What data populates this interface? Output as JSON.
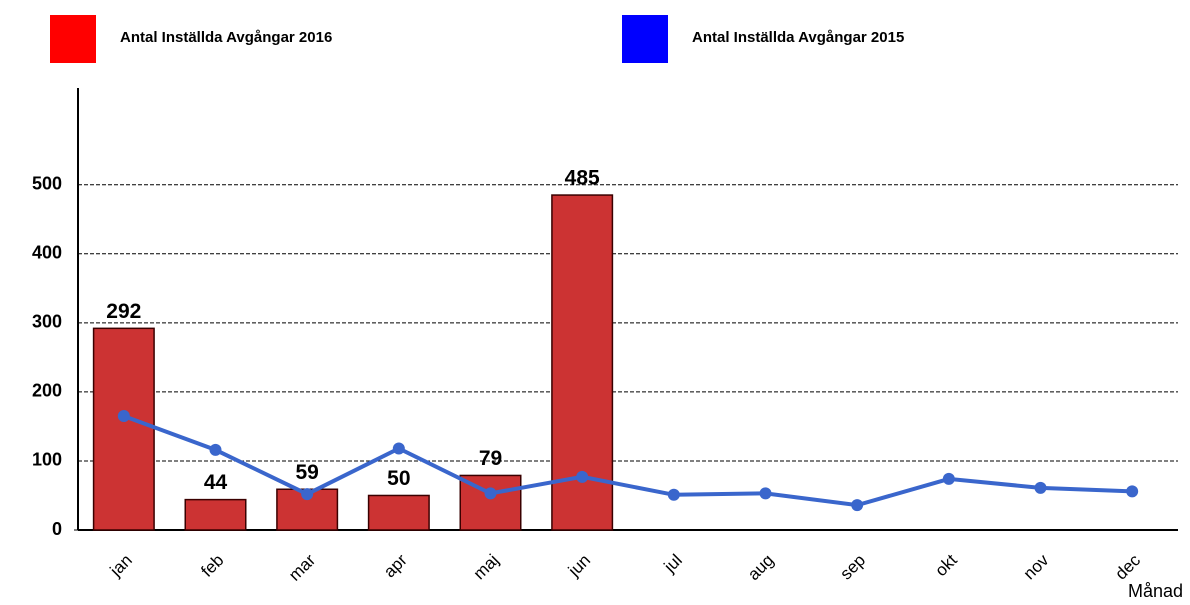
{
  "chart_data": {
    "type": "bar",
    "categories": [
      "jan",
      "feb",
      "mar",
      "apr",
      "maj",
      "jun",
      "jul",
      "aug",
      "sep",
      "okt",
      "nov",
      "dec"
    ],
    "x_label": "Månad",
    "series": [
      {
        "name": "Antal Inställda Avgångar 2016",
        "type": "bar",
        "color": "#cc3333",
        "legend_color": "#ff0000",
        "data_labels": true,
        "values": [
          292,
          44,
          59,
          50,
          79,
          485,
          null,
          null,
          null,
          null,
          null,
          null
        ]
      },
      {
        "name": "Antal Inställda Avgångar 2015",
        "type": "line",
        "color": "#3a66cc",
        "legend_color": "#0000ff",
        "data_labels": false,
        "values": [
          165,
          116,
          52,
          118,
          53,
          77,
          51,
          53,
          36,
          74,
          61,
          56
        ]
      }
    ],
    "ylim": [
      0,
      640
    ],
    "yticks": [
      0,
      100,
      200,
      300,
      400,
      500
    ],
    "grid": true
  }
}
